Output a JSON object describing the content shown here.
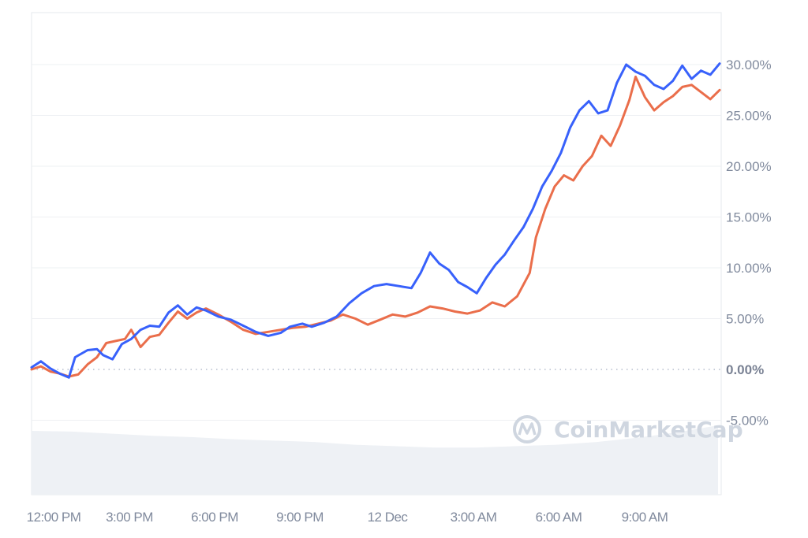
{
  "chart_data": {
    "type": "line",
    "title": "",
    "xlabel": "",
    "ylabel": "",
    "watermark": "CoinMarketCap",
    "y_ticks": [
      "30.00%",
      "25.00%",
      "20.00%",
      "15.00%",
      "10.00%",
      "5.00%",
      "0.00%",
      "-5.00%"
    ],
    "y_tick_values": [
      30,
      25,
      20,
      15,
      10,
      5,
      0,
      -5
    ],
    "ylim": [
      -5,
      35
    ],
    "x_ticks": [
      "12:00 PM",
      "3:00 PM",
      "6:00 PM",
      "9:00 PM",
      "12 Dec",
      "3:00 AM",
      "6:00 AM",
      "9:00 AM"
    ],
    "grid": true,
    "legend": "none",
    "series": [
      {
        "name": "blue-series",
        "color": "#3861fb",
        "values": [
          [
            0,
            0.2
          ],
          [
            0.3,
            0.8
          ],
          [
            0.6,
            0.1
          ],
          [
            0.9,
            -0.4
          ],
          [
            1.2,
            -0.8
          ],
          [
            1.4,
            1.2
          ],
          [
            1.8,
            1.9
          ],
          [
            2.1,
            2.0
          ],
          [
            2.3,
            1.4
          ],
          [
            2.6,
            1.0
          ],
          [
            2.9,
            2.5
          ],
          [
            3.2,
            3.0
          ],
          [
            3.5,
            3.9
          ],
          [
            3.8,
            4.3
          ],
          [
            4.1,
            4.2
          ],
          [
            4.4,
            5.6
          ],
          [
            4.7,
            6.3
          ],
          [
            5.0,
            5.4
          ],
          [
            5.3,
            6.1
          ],
          [
            5.6,
            5.8
          ],
          [
            6.0,
            5.2
          ],
          [
            6.4,
            4.9
          ],
          [
            6.8,
            4.3
          ],
          [
            7.2,
            3.7
          ],
          [
            7.6,
            3.3
          ],
          [
            8.0,
            3.6
          ],
          [
            8.3,
            4.2
          ],
          [
            8.7,
            4.5
          ],
          [
            9.0,
            4.2
          ],
          [
            9.4,
            4.6
          ],
          [
            9.8,
            5.2
          ],
          [
            10.2,
            6.5
          ],
          [
            10.6,
            7.5
          ],
          [
            11.0,
            8.2
          ],
          [
            11.4,
            8.4
          ],
          [
            11.8,
            8.2
          ],
          [
            12.2,
            8.0
          ],
          [
            12.5,
            9.5
          ],
          [
            12.8,
            11.5
          ],
          [
            13.1,
            10.4
          ],
          [
            13.4,
            9.8
          ],
          [
            13.7,
            8.6
          ],
          [
            14.0,
            8.1
          ],
          [
            14.3,
            7.5
          ],
          [
            14.6,
            9.0
          ],
          [
            14.9,
            10.3
          ],
          [
            15.2,
            11.3
          ],
          [
            15.5,
            12.7
          ],
          [
            15.8,
            14.0
          ],
          [
            16.1,
            15.8
          ],
          [
            16.4,
            18.0
          ],
          [
            16.7,
            19.5
          ],
          [
            17.0,
            21.3
          ],
          [
            17.3,
            23.8
          ],
          [
            17.6,
            25.5
          ],
          [
            17.9,
            26.4
          ],
          [
            18.2,
            25.2
          ],
          [
            18.5,
            25.5
          ],
          [
            18.8,
            28.2
          ],
          [
            19.1,
            30.0
          ],
          [
            19.4,
            29.3
          ],
          [
            19.7,
            28.9
          ],
          [
            20.0,
            28.0
          ],
          [
            20.3,
            27.6
          ],
          [
            20.6,
            28.4
          ],
          [
            20.9,
            29.9
          ],
          [
            21.2,
            28.6
          ],
          [
            21.5,
            29.4
          ],
          [
            21.8,
            29.0
          ],
          [
            22.1,
            30.1
          ]
        ]
      },
      {
        "name": "orange-series",
        "color": "#ea6e4b",
        "values": [
          [
            0,
            0.0
          ],
          [
            0.3,
            0.3
          ],
          [
            0.6,
            -0.2
          ],
          [
            0.9,
            -0.4
          ],
          [
            1.2,
            -0.7
          ],
          [
            1.5,
            -0.5
          ],
          [
            1.8,
            0.5
          ],
          [
            2.1,
            1.2
          ],
          [
            2.4,
            2.6
          ],
          [
            2.7,
            2.8
          ],
          [
            3.0,
            3.0
          ],
          [
            3.2,
            3.9
          ],
          [
            3.5,
            2.2
          ],
          [
            3.8,
            3.2
          ],
          [
            4.1,
            3.4
          ],
          [
            4.4,
            4.6
          ],
          [
            4.7,
            5.7
          ],
          [
            5.0,
            5.0
          ],
          [
            5.3,
            5.6
          ],
          [
            5.6,
            6.0
          ],
          [
            6.0,
            5.4
          ],
          [
            6.4,
            4.7
          ],
          [
            6.8,
            3.9
          ],
          [
            7.2,
            3.5
          ],
          [
            7.6,
            3.7
          ],
          [
            8.0,
            3.9
          ],
          [
            8.4,
            4.1
          ],
          [
            8.8,
            4.2
          ],
          [
            9.2,
            4.5
          ],
          [
            9.6,
            4.8
          ],
          [
            10.0,
            5.4
          ],
          [
            10.4,
            5.0
          ],
          [
            10.8,
            4.4
          ],
          [
            11.2,
            4.9
          ],
          [
            11.6,
            5.4
          ],
          [
            12.0,
            5.2
          ],
          [
            12.4,
            5.6
          ],
          [
            12.8,
            6.2
          ],
          [
            13.2,
            6.0
          ],
          [
            13.6,
            5.7
          ],
          [
            14.0,
            5.5
          ],
          [
            14.4,
            5.8
          ],
          [
            14.8,
            6.6
          ],
          [
            15.2,
            6.2
          ],
          [
            15.6,
            7.2
          ],
          [
            16.0,
            9.5
          ],
          [
            16.2,
            13.0
          ],
          [
            16.5,
            15.8
          ],
          [
            16.8,
            18.0
          ],
          [
            17.1,
            19.1
          ],
          [
            17.4,
            18.6
          ],
          [
            17.7,
            20.0
          ],
          [
            18.0,
            21.0
          ],
          [
            18.3,
            23.0
          ],
          [
            18.6,
            22.0
          ],
          [
            18.9,
            24.0
          ],
          [
            19.2,
            26.5
          ],
          [
            19.4,
            28.8
          ],
          [
            19.7,
            26.8
          ],
          [
            20.0,
            25.5
          ],
          [
            20.3,
            26.3
          ],
          [
            20.6,
            26.9
          ],
          [
            20.9,
            27.8
          ],
          [
            21.2,
            28.0
          ],
          [
            21.5,
            27.3
          ],
          [
            21.8,
            26.6
          ],
          [
            22.1,
            27.5
          ]
        ]
      }
    ],
    "volume_area": {
      "color": "#eef1f5",
      "relative_heights": [
        0.92,
        0.91,
        0.88,
        0.85,
        0.83,
        0.8,
        0.78,
        0.76,
        0.72,
        0.7,
        0.68,
        0.68,
        0.7,
        0.72,
        0.76,
        0.82,
        0.9,
        1.0
      ]
    }
  }
}
